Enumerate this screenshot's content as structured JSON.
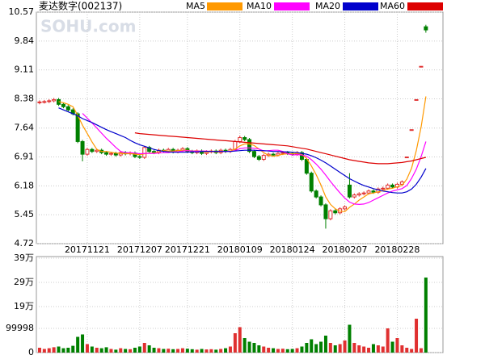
{
  "chart_data": {
    "type": "candlestick",
    "title": "麦达数字(002137)",
    "watermark": "SOHU.com",
    "up_color": "#e03030",
    "down_color": "#008000",
    "grid": true,
    "ylim": [
      4.72,
      10.57
    ],
    "yticks": [
      10.57,
      9.84,
      9.11,
      8.38,
      7.64,
      6.91,
      6.18,
      5.45,
      4.72
    ],
    "categories": [
      null,
      null,
      null,
      null,
      null,
      null,
      null,
      null,
      null,
      null,
      "20171121",
      null,
      null,
      null,
      null,
      null,
      null,
      null,
      null,
      null,
      null,
      "20171207",
      null,
      null,
      null,
      null,
      null,
      null,
      null,
      null,
      null,
      "20171221",
      null,
      null,
      null,
      null,
      null,
      null,
      null,
      null,
      null,
      null,
      "20180109",
      null,
      null,
      null,
      null,
      null,
      null,
      null,
      null,
      null,
      null,
      "20180124",
      null,
      null,
      null,
      null,
      null,
      null,
      null,
      null,
      null,
      null,
      "20180207",
      null,
      null,
      null,
      null,
      null,
      null,
      null,
      null,
      null,
      null,
      "20180228",
      null,
      null,
      null,
      null,
      null,
      null
    ],
    "open": [
      8.28,
      8.3,
      8.31,
      8.33,
      8.36,
      8.24,
      8.18,
      8.1,
      8.0,
      7.3,
      6.98,
      7.1,
      7.05,
      7.08,
      7.02,
      6.98,
      7.0,
      6.96,
      7.02,
      6.99,
      7.01,
      6.92,
      6.9,
      7.15,
      7.05,
      7.02,
      7.08,
      7.06,
      7.1,
      7.04,
      7.08,
      7.12,
      7.05,
      7.02,
      7.06,
      7.0,
      7.04,
      7.06,
      7.02,
      7.08,
      7.05,
      7.1,
      7.3,
      7.4,
      7.35,
      7.05,
      6.92,
      6.85,
      6.95,
      6.98,
      6.96,
      7.0,
      7.02,
      7.0,
      6.98,
      7.02,
      6.85,
      6.5,
      6.05,
      5.9,
      5.7,
      5.35,
      5.55,
      5.5,
      5.6,
      6.2,
      5.9,
      5.95,
      5.98,
      6.0,
      6.05,
      6.02,
      6.1,
      6.12,
      6.2,
      6.15,
      6.22,
      6.91,
      7.6,
      8.36,
      9.2,
      10.2
    ],
    "high": [
      8.34,
      8.35,
      8.37,
      8.4,
      8.4,
      8.28,
      8.22,
      8.14,
      8.04,
      7.34,
      7.14,
      7.14,
      7.12,
      7.12,
      7.06,
      7.04,
      7.04,
      7.06,
      7.06,
      7.05,
      7.05,
      6.96,
      7.19,
      7.19,
      7.09,
      7.12,
      7.12,
      7.14,
      7.14,
      7.12,
      7.16,
      7.16,
      7.09,
      7.1,
      7.1,
      7.08,
      7.1,
      7.1,
      7.12,
      7.12,
      7.14,
      7.34,
      7.45,
      7.44,
      7.39,
      7.09,
      6.96,
      6.99,
      7.02,
      7.02,
      7.04,
      7.06,
      7.06,
      7.04,
      7.06,
      7.06,
      6.89,
      6.54,
      6.09,
      5.94,
      5.74,
      5.59,
      5.59,
      5.64,
      5.69,
      6.5,
      5.99,
      6.02,
      6.04,
      6.09,
      6.09,
      6.14,
      6.16,
      6.24,
      6.24,
      6.26,
      6.32,
      6.91,
      7.6,
      8.36,
      9.2,
      10.25
    ],
    "low": [
      8.24,
      8.26,
      8.27,
      8.29,
      8.2,
      8.14,
      8.06,
      7.96,
      7.26,
      6.8,
      6.94,
      7.01,
      7.01,
      6.98,
      6.94,
      6.94,
      6.92,
      6.92,
      6.95,
      6.95,
      6.88,
      6.86,
      6.86,
      7.01,
      6.98,
      6.98,
      7.02,
      7.02,
      7.0,
      7.0,
      7.04,
      7.01,
      6.98,
      6.98,
      6.96,
      6.96,
      7.0,
      6.98,
      6.98,
      7.01,
      7.01,
      7.06,
      7.26,
      7.31,
      7.01,
      6.88,
      6.81,
      6.81,
      6.91,
      6.92,
      6.92,
      6.96,
      6.96,
      6.94,
      6.94,
      6.81,
      6.46,
      6.01,
      5.86,
      5.66,
      5.1,
      5.31,
      5.46,
      5.46,
      5.56,
      5.86,
      5.86,
      5.91,
      5.94,
      5.96,
      5.98,
      5.98,
      6.06,
      6.08,
      6.11,
      6.11,
      6.18,
      6.91,
      7.6,
      8.36,
      9.2,
      10.05
    ],
    "close": [
      8.3,
      8.31,
      8.33,
      8.36,
      8.24,
      8.18,
      8.1,
      8.0,
      7.3,
      6.98,
      7.1,
      7.05,
      7.08,
      7.02,
      6.98,
      7.0,
      6.96,
      7.02,
      6.99,
      7.01,
      6.92,
      6.9,
      7.15,
      7.05,
      7.02,
      7.08,
      7.06,
      7.1,
      7.04,
      7.08,
      7.12,
      7.05,
      7.02,
      7.06,
      7.0,
      7.04,
      7.06,
      7.02,
      7.08,
      7.05,
      7.1,
      7.3,
      7.4,
      7.35,
      7.05,
      6.92,
      6.85,
      6.95,
      6.98,
      6.96,
      7.0,
      7.02,
      7.0,
      6.98,
      7.02,
      6.85,
      6.5,
      6.05,
      5.9,
      5.7,
      5.35,
      5.55,
      5.5,
      5.6,
      5.65,
      5.9,
      5.95,
      5.98,
      6.0,
      6.05,
      6.02,
      6.1,
      6.12,
      6.2,
      6.15,
      6.22,
      6.28,
      6.91,
      7.6,
      8.36,
      9.2,
      10.12
    ],
    "series": [
      {
        "name": "MA5",
        "color": "#ff9900",
        "values": [
          null,
          null,
          null,
          null,
          8.31,
          8.28,
          8.24,
          8.18,
          7.96,
          7.71,
          7.5,
          7.29,
          7.1,
          7.05,
          7.05,
          7.03,
          7.01,
          7.0,
          6.99,
          7.0,
          6.98,
          6.97,
          6.99,
          7.01,
          7.01,
          7.04,
          7.07,
          7.06,
          7.06,
          7.07,
          7.08,
          7.08,
          7.06,
          7.07,
          7.05,
          7.03,
          7.04,
          7.04,
          7.04,
          7.05,
          7.06,
          7.11,
          7.19,
          7.24,
          7.24,
          7.2,
          7.11,
          7.02,
          6.95,
          6.93,
          6.95,
          6.98,
          6.99,
          6.99,
          7.0,
          6.97,
          6.87,
          6.68,
          6.46,
          6.2,
          5.9,
          5.71,
          5.6,
          5.54,
          5.53,
          5.64,
          5.72,
          5.82,
          5.9,
          5.98,
          6.0,
          6.03,
          6.06,
          6.1,
          6.12,
          6.16,
          6.19,
          6.35,
          6.63,
          7.07,
          7.67,
          8.44
        ]
      },
      {
        "name": "MA10",
        "color": "#ff00ff",
        "values": [
          null,
          null,
          null,
          null,
          null,
          null,
          null,
          null,
          null,
          8.01,
          7.89,
          7.77,
          7.64,
          7.51,
          7.38,
          7.27,
          7.15,
          7.05,
          7.02,
          7.02,
          7.01,
          6.99,
          7.0,
          7.0,
          7.0,
          7.01,
          7.02,
          7.02,
          7.04,
          7.04,
          7.06,
          7.07,
          7.06,
          7.06,
          7.06,
          7.06,
          7.05,
          7.05,
          7.05,
          7.05,
          7.05,
          7.07,
          7.12,
          7.14,
          7.14,
          7.13,
          7.11,
          7.06,
          7.07,
          7.08,
          7.08,
          7.05,
          6.99,
          6.96,
          6.97,
          6.96,
          6.93,
          6.84,
          6.73,
          6.6,
          6.45,
          6.29,
          6.14,
          6.0,
          5.87,
          5.77,
          5.72,
          5.71,
          5.72,
          5.76,
          5.82,
          5.88,
          5.94,
          6.0,
          6.05,
          6.08,
          6.11,
          6.19,
          6.37,
          6.6,
          6.92,
          7.3
        ]
      },
      {
        "name": "MA20",
        "color": "#0000cc",
        "values": [
          null,
          null,
          null,
          null,
          8.15,
          8.1,
          8.05,
          8.0,
          7.95,
          7.88,
          7.83,
          7.78,
          7.72,
          7.66,
          7.6,
          7.55,
          7.5,
          7.45,
          7.4,
          7.33,
          7.27,
          7.22,
          7.18,
          7.14,
          7.1,
          7.07,
          7.05,
          7.04,
          7.03,
          7.03,
          7.03,
          7.03,
          7.04,
          7.04,
          7.05,
          7.05,
          7.05,
          7.05,
          7.05,
          7.05,
          7.05,
          7.06,
          7.07,
          7.08,
          7.08,
          7.08,
          7.07,
          7.07,
          7.06,
          7.05,
          7.05,
          7.04,
          7.04,
          7.03,
          7.02,
          7.0,
          6.98,
          6.94,
          6.89,
          6.83,
          6.76,
          6.68,
          6.6,
          6.52,
          6.44,
          6.36,
          6.3,
          6.24,
          6.19,
          6.15,
          6.11,
          6.08,
          6.05,
          6.03,
          6.01,
          6.0,
          6.0,
          6.03,
          6.1,
          6.22,
          6.4,
          6.62
        ]
      },
      {
        "name": "MA60",
        "color": "#dd0000",
        "values": [
          null,
          null,
          null,
          null,
          null,
          null,
          null,
          null,
          null,
          null,
          null,
          null,
          null,
          null,
          null,
          null,
          null,
          null,
          null,
          null,
          7.52,
          7.5,
          7.49,
          7.48,
          7.47,
          7.46,
          7.45,
          7.44,
          7.43,
          7.42,
          7.41,
          7.4,
          7.39,
          7.38,
          7.37,
          7.36,
          7.35,
          7.34,
          7.33,
          7.32,
          7.31,
          7.3,
          7.29,
          7.28,
          7.27,
          7.26,
          7.25,
          7.24,
          7.23,
          7.22,
          7.21,
          7.2,
          7.19,
          7.17,
          7.15,
          7.13,
          7.11,
          7.08,
          7.05,
          7.02,
          6.99,
          6.96,
          6.93,
          6.9,
          6.87,
          6.84,
          6.82,
          6.8,
          6.78,
          6.76,
          6.75,
          6.74,
          6.74,
          6.74,
          6.75,
          6.76,
          6.77,
          6.79,
          6.81,
          6.84,
          6.87,
          6.9
        ]
      }
    ],
    "volume": {
      "ylim": [
        0,
        390000
      ],
      "yticks": [
        {
          "value": 390000,
          "label": "39万"
        },
        {
          "value": 290000,
          "label": "29万"
        },
        {
          "value": 190000,
          "label": "19万"
        },
        99998,
        0
      ],
      "values": [
        20000,
        15000,
        18000,
        22000,
        25000,
        18000,
        20000,
        28000,
        65000,
        75000,
        35000,
        25000,
        20000,
        18000,
        22000,
        15000,
        12000,
        18000,
        15000,
        14000,
        20000,
        25000,
        40000,
        30000,
        20000,
        18000,
        15000,
        16000,
        14000,
        15000,
        18000,
        16000,
        14000,
        12000,
        15000,
        13000,
        14000,
        12000,
        15000,
        18000,
        25000,
        80000,
        105000,
        60000,
        45000,
        40000,
        30000,
        25000,
        20000,
        18000,
        15000,
        16000,
        14000,
        15000,
        18000,
        25000,
        40000,
        55000,
        35000,
        45000,
        70000,
        40000,
        30000,
        35000,
        50000,
        115000,
        40000,
        30000,
        25000,
        20000,
        35000,
        30000,
        25000,
        100000,
        45000,
        60000,
        30000,
        20000,
        15000,
        140000,
        18000,
        310000
      ]
    }
  }
}
